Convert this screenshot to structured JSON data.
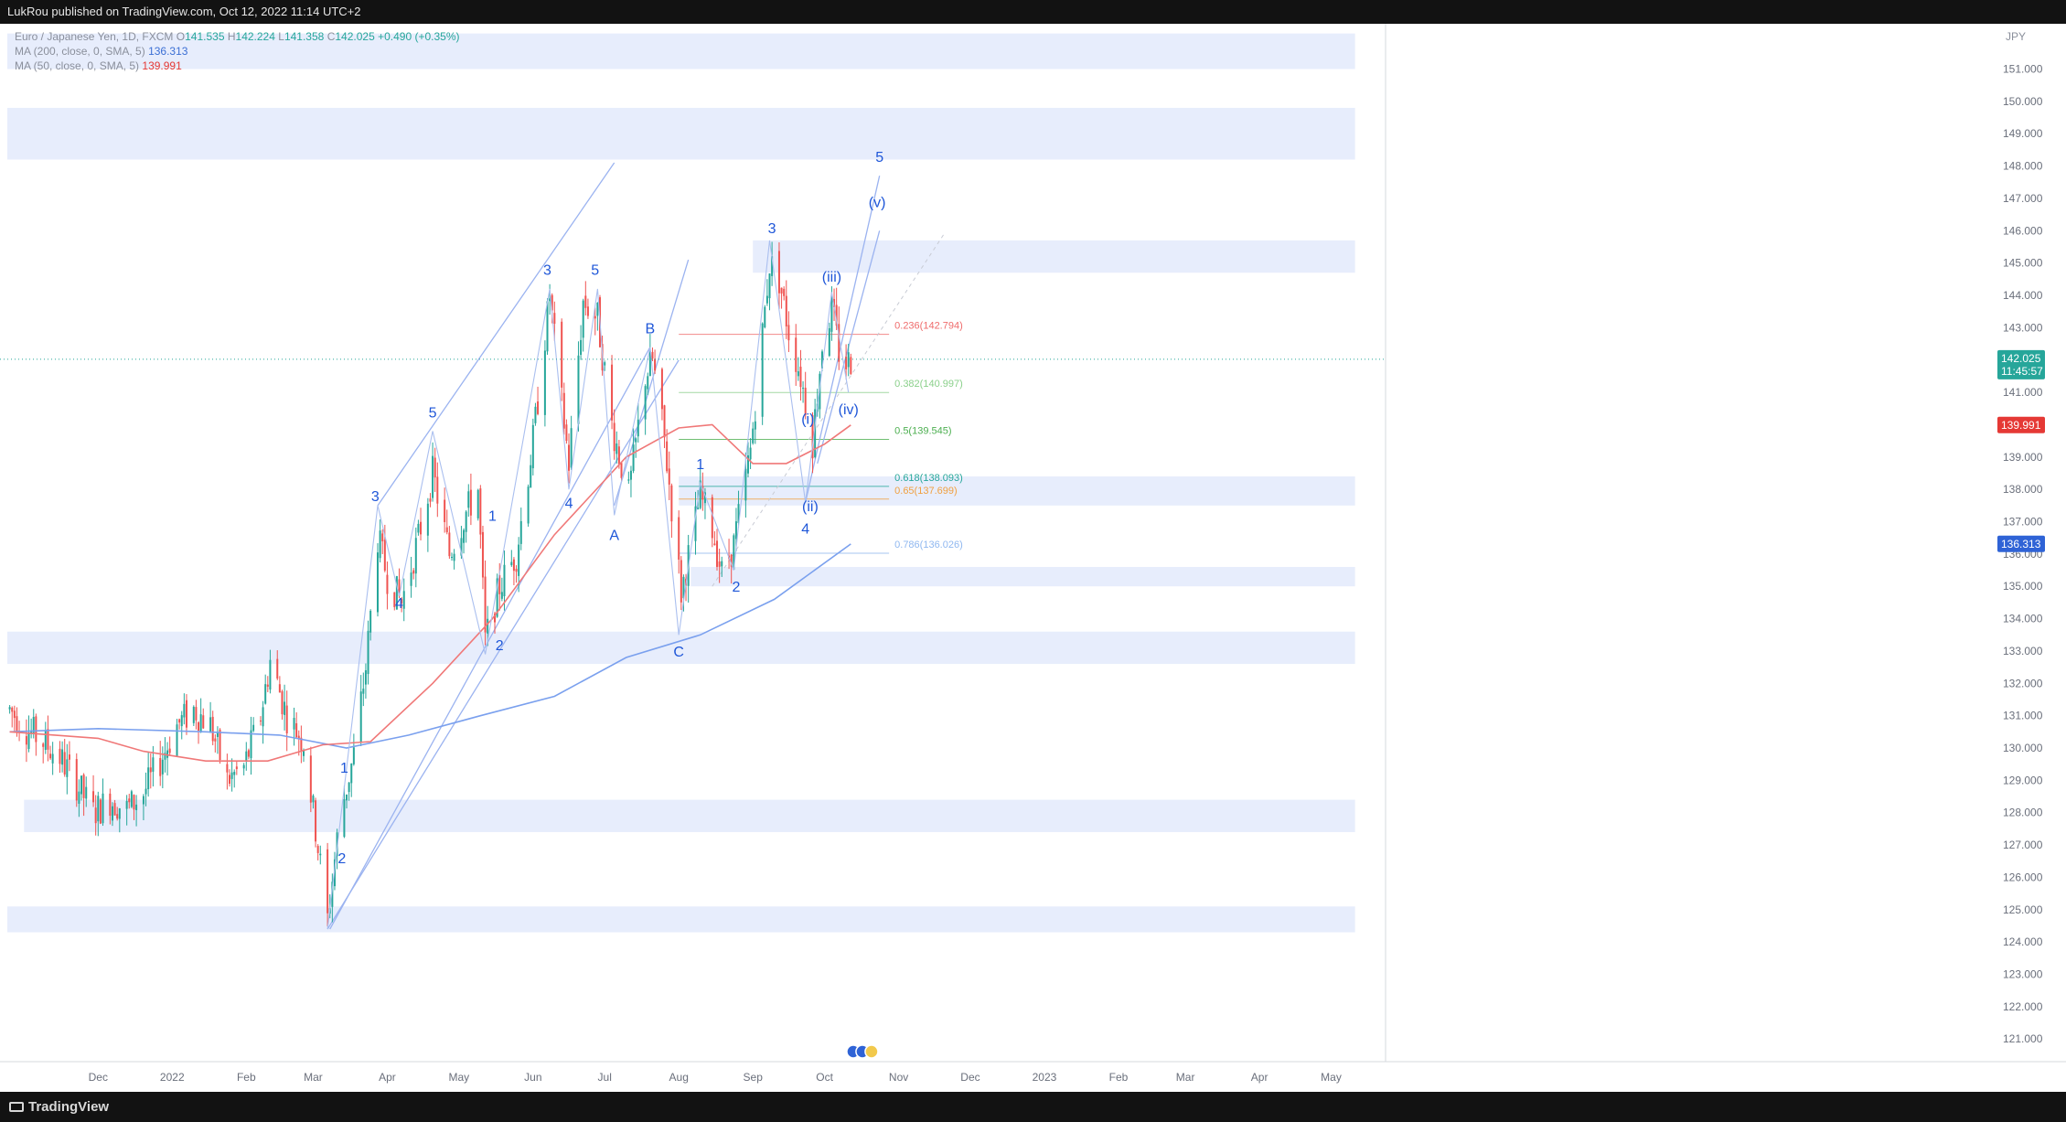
{
  "header": {
    "published": "LukRou published on TradingView.com, Oct 12, 2022 11:14 UTC+2"
  },
  "footer": {
    "brand": "TradingView"
  },
  "legend": {
    "symbol": "Euro / Japanese Yen, 1D, FXCM",
    "o_label": "O",
    "o": "141.535",
    "h_label": "H",
    "h": "142.224",
    "l_label": "L",
    "l": "141.358",
    "c_label": "C",
    "c": "142.025",
    "change": "+0.490 (+0.35%)",
    "ma200_label": "MA (200, close, 0, SMA, 5)",
    "ma200": "136.313",
    "ma50_label": "MA (50, close, 0, SMA, 5)",
    "ma50": "139.991"
  },
  "colors": {
    "up": "#26a69a",
    "down": "#ef5350",
    "ma200": "#7aa0ee",
    "ma50": "#f07878",
    "wave_label": "#1e56d8",
    "zone": "#e7edfc",
    "trendline": "#9bb3f0"
  },
  "chart_data": {
    "type": "candlestick",
    "currency": "JPY",
    "y_ticks": [
      121,
      122,
      123,
      124,
      125,
      126,
      127,
      128,
      129,
      130,
      131,
      132,
      133,
      134,
      135,
      136,
      137,
      138,
      139,
      140,
      141,
      142,
      143,
      144,
      145,
      146,
      147,
      148,
      149,
      150,
      151
    ],
    "y_range": [
      120.3,
      152.4
    ],
    "x_labels": [
      "Dec",
      "2022",
      "Feb",
      "Mar",
      "Apr",
      "May",
      "Jun",
      "Jul",
      "Aug",
      "Sep",
      "Oct",
      "Nov",
      "Dec",
      "2023",
      "Feb",
      "Mar",
      "Apr",
      "May"
    ],
    "x_label_dates": [
      "2021-12-01",
      "2022-01-01",
      "2022-02-01",
      "2022-03-01",
      "2022-04-01",
      "2022-05-01",
      "2022-06-01",
      "2022-07-01",
      "2022-08-01",
      "2022-09-01",
      "2022-10-01",
      "2022-11-01",
      "2022-12-01",
      "2023-01-01",
      "2023-02-01",
      "2023-03-01",
      "2023-04-01",
      "2023-05-01"
    ],
    "x_range": [
      "2021-10-24",
      "2023-05-23"
    ],
    "last_price": "142.025",
    "countdown": "11:45:57",
    "ma200_value": "136.313",
    "ma50_value": "139.991",
    "price_path": [
      {
        "date": "2021-10-25",
        "price": 131.2
      },
      {
        "date": "2021-11-01",
        "price": 130.6
      },
      {
        "date": "2021-11-08",
        "price": 130.2
      },
      {
        "date": "2021-11-15",
        "price": 129.7
      },
      {
        "date": "2021-11-22",
        "price": 128.9
      },
      {
        "date": "2021-11-29",
        "price": 128.0
      },
      {
        "date": "2021-12-06",
        "price": 128.4
      },
      {
        "date": "2021-12-13",
        "price": 128.1
      },
      {
        "date": "2021-12-20",
        "price": 128.6
      },
      {
        "date": "2021-12-27",
        "price": 129.6
      },
      {
        "date": "2022-01-03",
        "price": 130.7
      },
      {
        "date": "2022-01-10",
        "price": 131.2
      },
      {
        "date": "2022-01-17",
        "price": 130.7
      },
      {
        "date": "2022-01-24",
        "price": 129.0
      },
      {
        "date": "2022-01-31",
        "price": 129.4
      },
      {
        "date": "2022-02-07",
        "price": 131.0
      },
      {
        "date": "2022-02-11",
        "price": 132.7
      },
      {
        "date": "2022-02-18",
        "price": 131.0
      },
      {
        "date": "2022-02-25",
        "price": 130.2
      },
      {
        "date": "2022-03-02",
        "price": 127.5
      },
      {
        "date": "2022-03-07",
        "price": 124.7
      },
      {
        "date": "2022-03-12",
        "price": 127.8
      },
      {
        "date": "2022-03-18",
        "price": 129.8
      },
      {
        "date": "2022-03-23",
        "price": 132.5
      },
      {
        "date": "2022-03-28",
        "price": 136.5
      },
      {
        "date": "2022-04-01",
        "price": 135.3
      },
      {
        "date": "2022-04-07",
        "price": 134.5
      },
      {
        "date": "2022-04-14",
        "price": 136.5
      },
      {
        "date": "2022-04-20",
        "price": 138.5
      },
      {
        "date": "2022-04-27",
        "price": 136.0
      },
      {
        "date": "2022-05-04",
        "price": 137.3
      },
      {
        "date": "2022-05-09",
        "price": 138.0
      },
      {
        "date": "2022-05-12",
        "price": 133.3
      },
      {
        "date": "2022-05-18",
        "price": 135.0
      },
      {
        "date": "2022-05-25",
        "price": 136.0
      },
      {
        "date": "2022-06-01",
        "price": 139.5
      },
      {
        "date": "2022-06-08",
        "price": 144.0
      },
      {
        "date": "2022-06-12",
        "price": 141.3
      },
      {
        "date": "2022-06-16",
        "price": 138.8
      },
      {
        "date": "2022-06-22",
        "price": 143.8
      },
      {
        "date": "2022-06-28",
        "price": 143.3
      },
      {
        "date": "2022-07-04",
        "price": 140.0
      },
      {
        "date": "2022-07-11",
        "price": 137.8
      },
      {
        "date": "2022-07-18",
        "price": 141.5
      },
      {
        "date": "2022-07-21",
        "price": 142.0
      },
      {
        "date": "2022-07-26",
        "price": 139.5
      },
      {
        "date": "2022-08-02",
        "price": 134.8
      },
      {
        "date": "2022-08-06",
        "price": 136.3
      },
      {
        "date": "2022-08-10",
        "price": 137.8
      },
      {
        "date": "2022-08-15",
        "price": 136.8
      },
      {
        "date": "2022-08-19",
        "price": 135.4
      },
      {
        "date": "2022-08-24",
        "price": 136.3
      },
      {
        "date": "2022-08-31",
        "price": 139.2
      },
      {
        "date": "2022-09-05",
        "price": 142.8
      },
      {
        "date": "2022-09-08",
        "price": 145.0
      },
      {
        "date": "2022-09-12",
        "price": 144.5
      },
      {
        "date": "2022-09-16",
        "price": 142.9
      },
      {
        "date": "2022-09-21",
        "price": 141.5
      },
      {
        "date": "2022-09-26",
        "price": 139.5
      },
      {
        "date": "2022-09-30",
        "price": 142.5
      },
      {
        "date": "2022-10-04",
        "price": 143.6
      },
      {
        "date": "2022-10-08",
        "price": 141.8
      },
      {
        "date": "2022-10-12",
        "price": 142.0
      }
    ],
    "ma50_path": [
      {
        "date": "2021-10-25",
        "price": 130.5
      },
      {
        "date": "2021-12-01",
        "price": 130.3
      },
      {
        "date": "2021-12-20",
        "price": 129.9
      },
      {
        "date": "2022-01-15",
        "price": 129.6
      },
      {
        "date": "2022-02-10",
        "price": 129.6
      },
      {
        "date": "2022-03-05",
        "price": 130.1
      },
      {
        "date": "2022-03-25",
        "price": 130.2
      },
      {
        "date": "2022-04-20",
        "price": 132.0
      },
      {
        "date": "2022-05-15",
        "price": 134.0
      },
      {
        "date": "2022-06-10",
        "price": 136.6
      },
      {
        "date": "2022-07-10",
        "price": 139.0
      },
      {
        "date": "2022-08-01",
        "price": 139.9
      },
      {
        "date": "2022-08-15",
        "price": 140.0
      },
      {
        "date": "2022-09-01",
        "price": 138.8
      },
      {
        "date": "2022-09-15",
        "price": 138.8
      },
      {
        "date": "2022-10-01",
        "price": 139.4
      },
      {
        "date": "2022-10-12",
        "price": 139.99
      }
    ],
    "ma200_path": [
      {
        "date": "2021-10-25",
        "price": 130.5
      },
      {
        "date": "2021-12-01",
        "price": 130.6
      },
      {
        "date": "2022-01-15",
        "price": 130.5
      },
      {
        "date": "2022-02-15",
        "price": 130.4
      },
      {
        "date": "2022-03-15",
        "price": 130.0
      },
      {
        "date": "2022-04-10",
        "price": 130.4
      },
      {
        "date": "2022-05-10",
        "price": 131.0
      },
      {
        "date": "2022-06-10",
        "price": 131.6
      },
      {
        "date": "2022-07-10",
        "price": 132.8
      },
      {
        "date": "2022-08-10",
        "price": 133.5
      },
      {
        "date": "2022-09-10",
        "price": 134.6
      },
      {
        "date": "2022-10-12",
        "price": 136.31
      }
    ],
    "zones": [
      {
        "start": "2021-10-24",
        "end": "2023-05-11",
        "low": 151.0,
        "high": 152.1
      },
      {
        "start": "2021-10-24",
        "end": "2023-05-11",
        "low": 148.2,
        "high": 149.8
      },
      {
        "start": "2022-09-01",
        "end": "2023-05-11",
        "low": 144.7,
        "high": 145.7
      },
      {
        "start": "2022-08-01",
        "end": "2023-05-11",
        "low": 137.5,
        "high": 138.4
      },
      {
        "start": "2022-08-06",
        "end": "2023-05-11",
        "low": 135.0,
        "high": 135.6
      },
      {
        "start": "2021-10-24",
        "end": "2023-05-11",
        "low": 132.6,
        "high": 133.6
      },
      {
        "start": "2021-10-31",
        "end": "2023-05-11",
        "low": 127.4,
        "high": 128.4
      },
      {
        "start": "2021-10-24",
        "end": "2023-05-11",
        "low": 124.3,
        "high": 125.1
      }
    ],
    "fib_levels": [
      {
        "label": "0.236(142.794)",
        "price": 142.794,
        "color": "#ef6c6c"
      },
      {
        "label": "0.382(140.997)",
        "price": 140.997,
        "color": "#8bd08b"
      },
      {
        "label": "0.5(139.545)",
        "price": 139.545,
        "color": "#4caf50"
      },
      {
        "label": "0.618(138.093)",
        "price": 138.093,
        "color": "#26a69a"
      },
      {
        "label": "0.65(137.699)",
        "price": 137.699,
        "color": "#f0a040"
      },
      {
        "label": "0.786(136.026)",
        "price": 136.026,
        "color": "#90b8f0"
      }
    ],
    "fib_range": [
      "2022-08-01",
      "2022-10-28"
    ],
    "channel_lines": [
      {
        "from": {
          "date": "2022-03-07",
          "price": 124.4
        },
        "to": {
          "date": "2022-08-01",
          "price": 142.0
        }
      },
      {
        "from": {
          "date": "2022-03-08",
          "price": 124.4
        },
        "to": {
          "date": "2022-07-20",
          "price": 142.4
        }
      },
      {
        "from": {
          "date": "2022-03-28",
          "price": 137.5
        },
        "to": {
          "date": "2022-07-05",
          "price": 148.1
        }
      },
      {
        "from": {
          "date": "2022-07-05",
          "price": 137.5
        },
        "to": {
          "date": "2022-08-05",
          "price": 145.1
        }
      },
      {
        "from": {
          "date": "2022-09-23",
          "price": 137.6
        },
        "to": {
          "date": "2022-10-24",
          "price": 147.7
        }
      },
      {
        "from": {
          "date": "2022-09-28",
          "price": 138.8
        },
        "to": {
          "date": "2022-10-24",
          "price": 146.0
        }
      }
    ],
    "dashed_line": {
      "from": {
        "date": "2022-08-15",
        "price": 135.0
      },
      "to": {
        "date": "2022-11-20",
        "price": 145.9
      }
    },
    "wave_path": [
      {
        "date": "2022-03-07",
        "price": 124.4
      },
      {
        "date": "2022-03-28",
        "price": 137.5
      },
      {
        "date": "2022-04-06",
        "price": 134.7
      },
      {
        "date": "2022-04-20",
        "price": 139.8
      },
      {
        "date": "2022-05-12",
        "price": 132.9
      },
      {
        "date": "2022-06-08",
        "price": 144.2
      },
      {
        "date": "2022-06-16",
        "price": 138.0
      },
      {
        "date": "2022-06-28",
        "price": 144.2
      },
      {
        "date": "2022-07-05",
        "price": 137.2
      },
      {
        "date": "2022-07-20",
        "price": 142.4
      },
      {
        "date": "2022-08-01",
        "price": 133.5
      },
      {
        "date": "2022-08-10",
        "price": 138.2
      },
      {
        "date": "2022-08-24",
        "price": 135.5
      },
      {
        "date": "2022-09-08",
        "price": 145.7
      },
      {
        "date": "2022-09-23",
        "price": 137.6
      },
      {
        "date": "2022-10-04",
        "price": 144.1
      },
      {
        "date": "2022-10-11",
        "price": 141.0
      }
    ],
    "wave_labels": [
      {
        "text": "1",
        "date": "2022-03-14",
        "price": 129.4
      },
      {
        "text": "2",
        "date": "2022-03-13",
        "price": 126.6
      },
      {
        "text": "3",
        "date": "2022-03-27",
        "price": 137.8
      },
      {
        "text": "4",
        "date": "2022-04-06",
        "price": 134.5
      },
      {
        "text": "5",
        "date": "2022-04-20",
        "price": 140.4
      },
      {
        "text": "1",
        "date": "2022-05-15",
        "price": 137.2
      },
      {
        "text": "2",
        "date": "2022-05-18",
        "price": 133.2
      },
      {
        "text": "3",
        "date": "2022-06-07",
        "price": 144.8
      },
      {
        "text": "4",
        "date": "2022-06-16",
        "price": 137.6
      },
      {
        "text": "5",
        "date": "2022-06-27",
        "price": 144.8
      },
      {
        "text": "A",
        "date": "2022-07-05",
        "price": 136.6
      },
      {
        "text": "B",
        "date": "2022-07-20",
        "price": 143.0
      },
      {
        "text": "C",
        "date": "2022-08-01",
        "price": 133.0
      },
      {
        "text": "1",
        "date": "2022-08-10",
        "price": 138.8
      },
      {
        "text": "2",
        "date": "2022-08-25",
        "price": 135.0
      },
      {
        "text": "3",
        "date": "2022-09-09",
        "price": 146.1
      },
      {
        "text": "4",
        "date": "2022-09-23",
        "price": 136.8
      },
      {
        "text": "(i)",
        "date": "2022-09-24",
        "price": 140.2
      },
      {
        "text": "(ii)",
        "date": "2022-09-25",
        "price": 137.5
      },
      {
        "text": "(iii)",
        "date": "2022-10-04",
        "price": 144.6
      },
      {
        "text": "(iv)",
        "date": "2022-10-11",
        "price": 140.5
      },
      {
        "text": "(v)",
        "date": "2022-10-23",
        "price": 146.9
      },
      {
        "text": "5",
        "date": "2022-10-24",
        "price": 148.3
      }
    ]
  }
}
